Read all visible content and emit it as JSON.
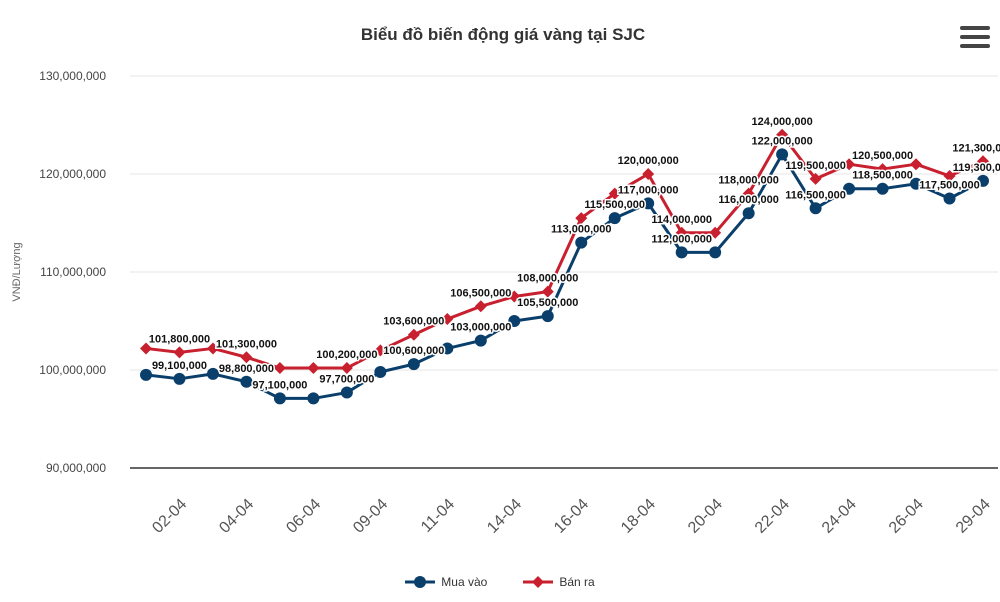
{
  "colors": {
    "buy": "#0b3f6b",
    "sell": "#c8202e",
    "grid": "#e6e6e6",
    "axis": "#333333"
  },
  "menu_icon": "hamburger-menu-icon",
  "chart_data": {
    "type": "line",
    "title": "Biểu đồ biến động giá vàng tại SJC",
    "ylabel": "VNĐ/Lượng",
    "ylim": [
      90000000,
      130000000
    ],
    "yticks": [
      90000000,
      100000000,
      110000000,
      120000000,
      130000000
    ],
    "ytick_labels": [
      "90,000,000",
      "100,000,000",
      "110,000,000",
      "120,000,000",
      "130,000,000"
    ],
    "xtick_labels": [
      "02-04",
      "04-04",
      "06-04",
      "09-04",
      "11-04",
      "14-04",
      "16-04",
      "18-04",
      "20-04",
      "22-04",
      "24-04",
      "26-04",
      "29-04"
    ],
    "grid": true,
    "legend_position": "bottom",
    "series": [
      {
        "name": "Mua vào",
        "marker": "circle",
        "values": [
          99500000,
          99100000,
          99600000,
          98800000,
          97100000,
          97100000,
          97700000,
          99800000,
          100600000,
          102200000,
          103000000,
          105000000,
          105500000,
          113000000,
          115500000,
          117000000,
          112000000,
          112000000,
          116000000,
          122000000,
          116500000,
          118500000,
          118500000,
          119000000,
          117500000,
          119300000
        ],
        "labels": [
          null,
          "99,100,000",
          null,
          "98,800,000",
          "97,100,000",
          null,
          "97,700,000",
          null,
          "100,600,000",
          null,
          "103,000,000",
          null,
          "105,500,000",
          "113,000,000",
          "115,500,000",
          "117,000,000",
          "112,000,000",
          null,
          "116,000,000",
          "122,000,000",
          "116,500,000",
          null,
          "118,500,000",
          null,
          "117,500,000",
          "119,300,000"
        ]
      },
      {
        "name": "Bán ra",
        "marker": "diamond",
        "values": [
          102200000,
          101800000,
          102200000,
          101300000,
          100200000,
          100200000,
          100200000,
          102000000,
          103600000,
          105200000,
          106500000,
          107500000,
          108000000,
          115500000,
          118000000,
          120000000,
          114000000,
          114000000,
          118000000,
          124000000,
          119500000,
          121000000,
          120500000,
          121000000,
          119800000,
          121300000
        ],
        "labels": [
          null,
          "101,800,000",
          null,
          "101,300,000",
          null,
          null,
          "100,200,000",
          null,
          "103,600,000",
          null,
          "106,500,000",
          null,
          "108,000,000",
          null,
          null,
          "120,000,000",
          "114,000,000",
          null,
          "118,000,000",
          "124,000,000",
          "119,500,000",
          null,
          "120,500,000",
          null,
          null,
          "121,300,000"
        ]
      }
    ]
  }
}
